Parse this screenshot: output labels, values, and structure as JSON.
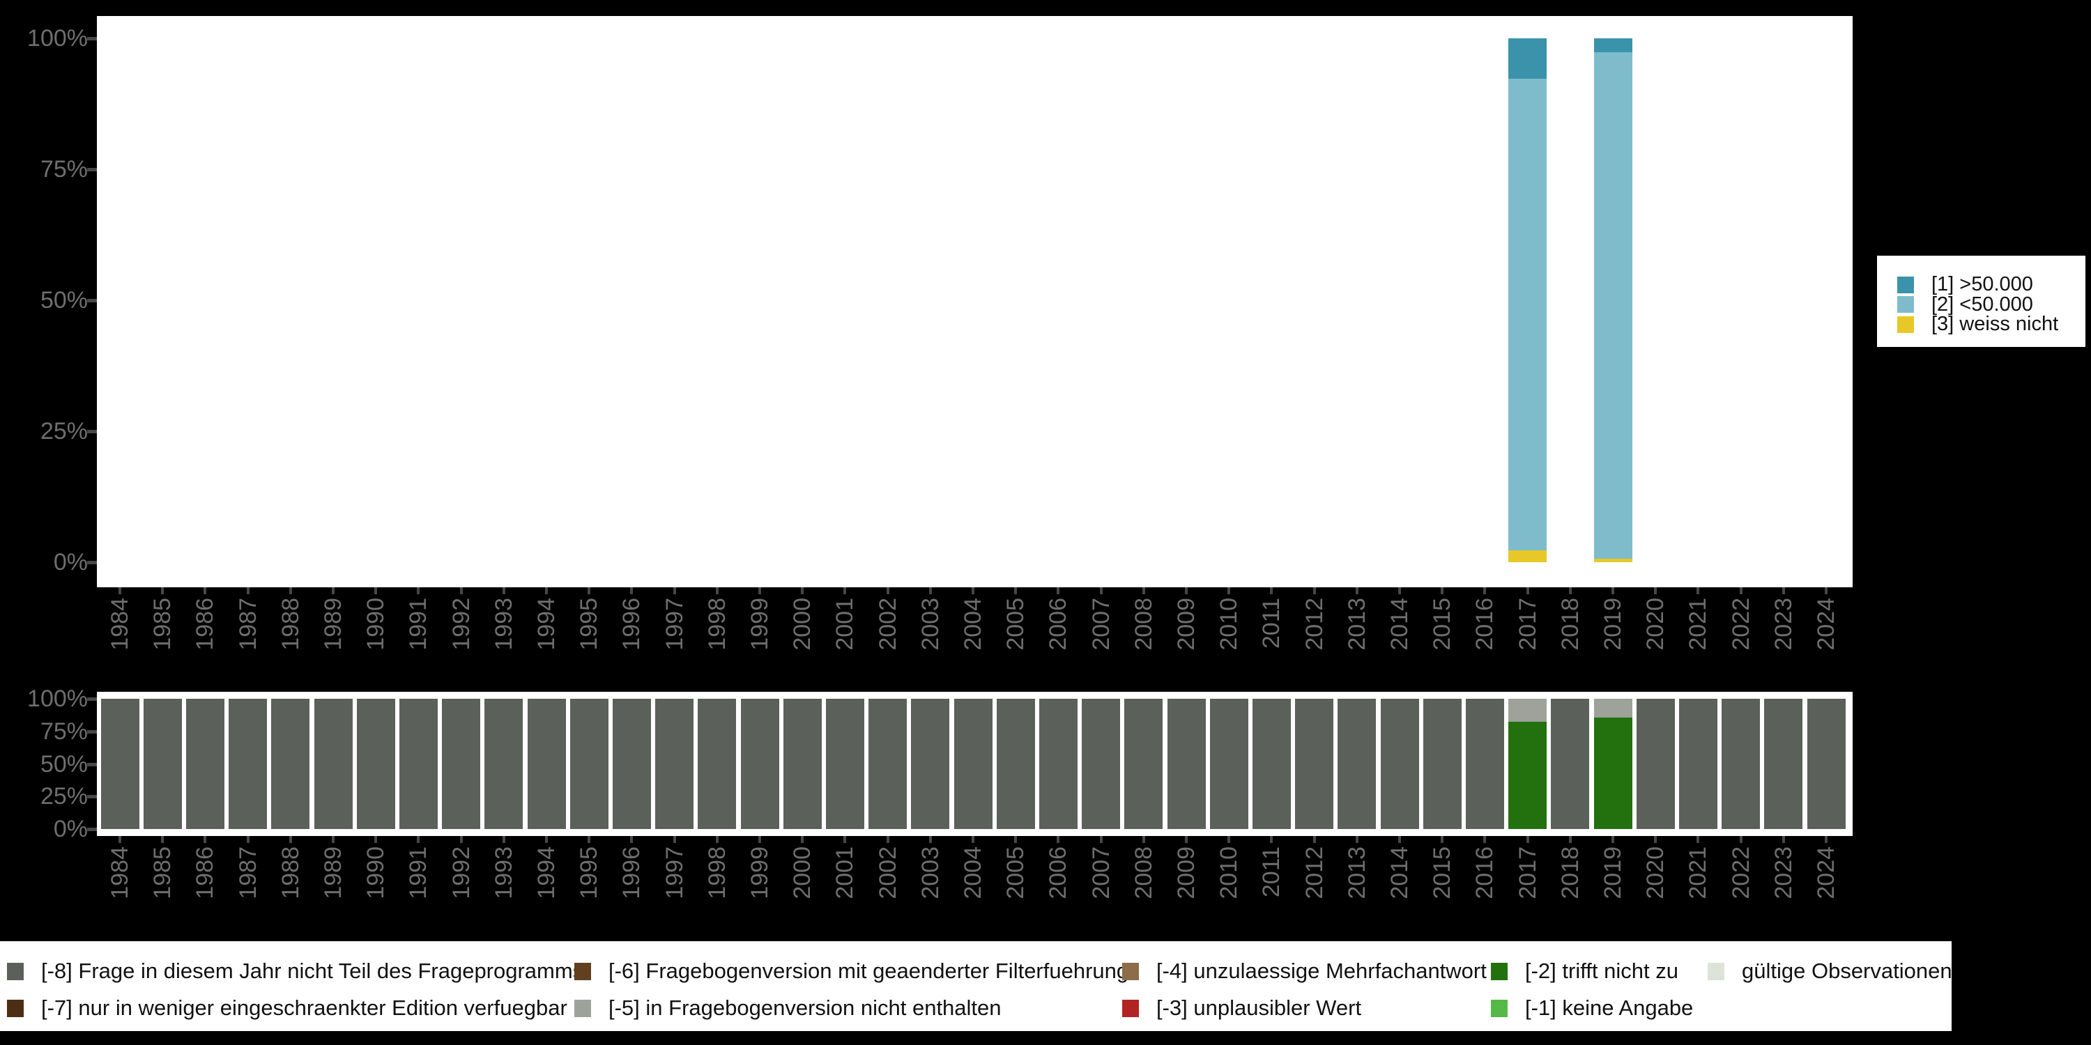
{
  "figure": {
    "background_color": "#000000",
    "plot_background_color": "#ffffff",
    "axis_text_color": "#6e6e6e",
    "tick_color": "#474747",
    "legend_background_color": "#ffffff",
    "legend_text_color": "#111111"
  },
  "chart_data": [
    {
      "id": "values-chart",
      "type": "bar",
      "stacked": true,
      "title": "",
      "xlabel": "",
      "ylabel": "",
      "ylim": [
        0,
        100
      ],
      "grid": false,
      "legend_position": "right",
      "yticks": [
        "100%",
        "75%",
        "50%",
        "25%",
        "0%"
      ],
      "categories": [
        "1984",
        "1985",
        "1986",
        "1987",
        "1988",
        "1989",
        "1990",
        "1991",
        "1992",
        "1993",
        "1994",
        "1995",
        "1996",
        "1997",
        "1998",
        "1999",
        "2000",
        "2001",
        "2002",
        "2003",
        "2004",
        "2005",
        "2006",
        "2007",
        "2008",
        "2009",
        "2010",
        "2011",
        "2012",
        "2013",
        "2014",
        "2015",
        "2016",
        "2017",
        "2018",
        "2019",
        "2020",
        "2021",
        "2022",
        "2023",
        "2024"
      ],
      "series": [
        {
          "key": "1",
          "name": "[1] >50.000",
          "color": "#3b93ab",
          "values": {
            "2017": 7.7,
            "2019": 2.7
          }
        },
        {
          "key": "2",
          "name": "[2] <50.000",
          "color": "#7fbccb",
          "values": {
            "2017": 90.0,
            "2019": 96.6
          }
        },
        {
          "key": "3",
          "name": "[3] weiss nicht",
          "color": "#e8c829",
          "values": {
            "2017": 2.3,
            "2019": 0.7
          }
        }
      ]
    },
    {
      "id": "missings-chart",
      "type": "bar",
      "stacked": true,
      "title": "",
      "xlabel": "",
      "ylabel": "",
      "ylim": [
        0,
        100
      ],
      "grid": false,
      "legend_position": "bottom",
      "yticks": [
        "100%",
        "75%",
        "50%",
        "25%",
        "0%"
      ],
      "categories": [
        "1984",
        "1985",
        "1986",
        "1987",
        "1988",
        "1989",
        "1990",
        "1991",
        "1992",
        "1993",
        "1994",
        "1995",
        "1996",
        "1997",
        "1998",
        "1999",
        "2000",
        "2001",
        "2002",
        "2003",
        "2004",
        "2005",
        "2006",
        "2007",
        "2008",
        "2009",
        "2010",
        "2011",
        "2012",
        "2013",
        "2014",
        "2015",
        "2016",
        "2017",
        "2018",
        "2019",
        "2020",
        "2021",
        "2022",
        "2023",
        "2024"
      ],
      "series": [
        {
          "key": "-8",
          "name": "[-8] Frage in diesem Jahr nicht Teil des Frageprogramms",
          "color": "#5b615a",
          "default_pct": 100,
          "values": {
            "2017": 0,
            "2019": 0
          }
        },
        {
          "key": "-7",
          "name": "[-7] nur in weniger eingeschraenkter Edition verfuegbar",
          "color": "#4b2e13",
          "values": {}
        },
        {
          "key": "-6",
          "name": "[-6] Fragebogenversion mit geaenderter Filterfuehrung",
          "color": "#61401f",
          "values": {}
        },
        {
          "key": "-5",
          "name": "[-5] in Fragebogenversion nicht enthalten",
          "color": "#9ea29b",
          "values": {
            "2017": 17.6,
            "2019": 14.4
          }
        },
        {
          "key": "-4",
          "name": "[-4] unzulaessige Mehrfachantwort",
          "color": "#8c6d48",
          "values": {}
        },
        {
          "key": "-3",
          "name": "[-3] unplausibler Wert",
          "color": "#b22423",
          "values": {}
        },
        {
          "key": "-2",
          "name": "[-2] trifft nicht zu",
          "color": "#23700f",
          "values": {
            "2017": 82.4,
            "2019": 85.6
          }
        },
        {
          "key": "-1",
          "name": "[-1] keine Angabe",
          "color": "#55b948",
          "values": {}
        },
        {
          "key": "valid",
          "name": "gültige Observationen",
          "color": "#dee3da",
          "values": {}
        }
      ],
      "legend_columns": [
        [
          "-8",
          "-7"
        ],
        [
          "-6",
          "-5"
        ],
        [
          "-4",
          "-3"
        ],
        [
          "-2",
          "-1"
        ],
        [
          "valid"
        ]
      ]
    }
  ]
}
